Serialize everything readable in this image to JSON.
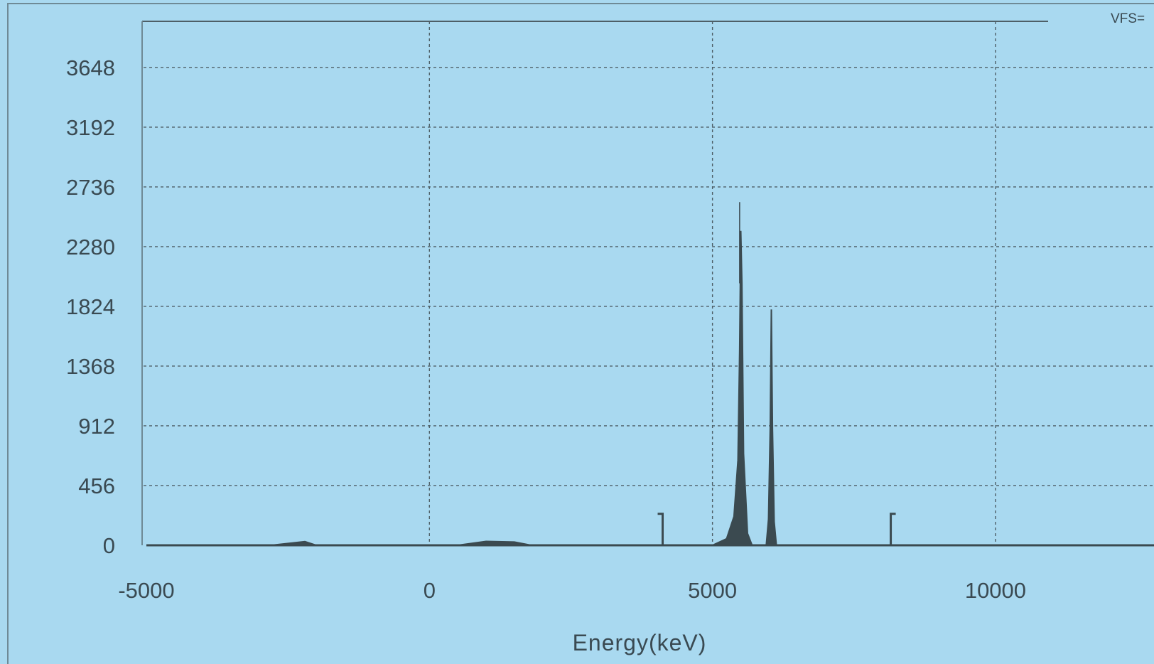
{
  "chart_data": {
    "type": "area",
    "title": "",
    "xlabel": "Energy(keV)",
    "ylabel": "",
    "xlim": [
      -5000,
      12800
    ],
    "ylim": [
      0,
      4000
    ],
    "x_ticks": [
      -5000,
      0,
      5000,
      10000
    ],
    "x_tick_labels": [
      "-5000",
      "0",
      "5000",
      "10000"
    ],
    "y_ticks": [
      0,
      456,
      912,
      1368,
      1824,
      2280,
      2736,
      3192,
      3648
    ],
    "y_tick_labels": [
      "0",
      "456",
      "912",
      "1368",
      "1824",
      "2280",
      "2736",
      "3192",
      "3648"
    ],
    "grid": true,
    "corner_label": "VFS=",
    "series": [
      {
        "color": "#3b4a50",
        "x": [
          -5000,
          -2800,
          -2200,
          -2000,
          500,
          1000,
          1500,
          1800,
          5000,
          5250,
          5380,
          5450,
          5480,
          5500,
          5520,
          5550,
          5620,
          5700,
          5950,
          5990,
          6020,
          6040,
          6060,
          6090,
          6130,
          12800
        ],
        "y": [
          0,
          0,
          28,
          0,
          0,
          30,
          25,
          0,
          0,
          50,
          220,
          650,
          1500,
          2400,
          2000,
          700,
          90,
          0,
          0,
          200,
          900,
          1800,
          900,
          180,
          0,
          0
        ]
      }
    ],
    "markers": [
      {
        "x": 4120,
        "y": 240
      },
      {
        "x": 8150,
        "y": 240
      }
    ],
    "peak_line": {
      "x": 5480,
      "y": 2620
    }
  }
}
